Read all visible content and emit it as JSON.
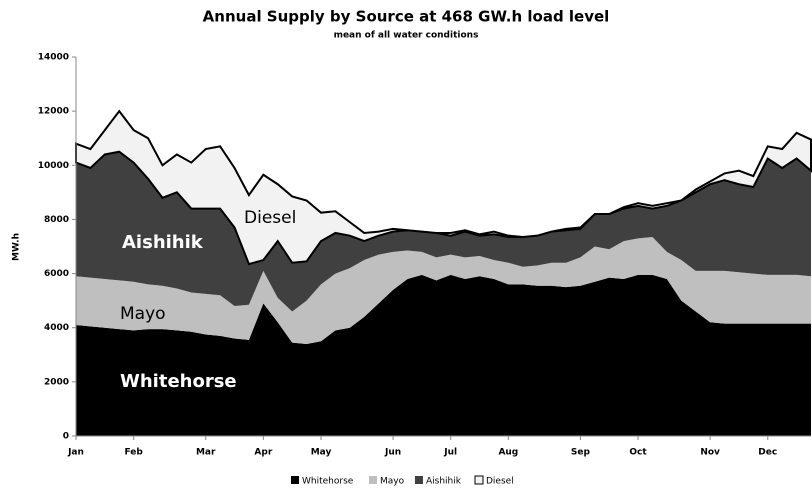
{
  "chart_data": {
    "type": "stacked_area",
    "title": "Annual Supply by Source at 468 GW.h load level",
    "subtitle": "mean of all water conditions",
    "y_label": "MW.h",
    "categories": [
      "Jan",
      null,
      null,
      null,
      "Feb",
      null,
      null,
      null,
      null,
      "Mar",
      null,
      null,
      null,
      "Apr",
      null,
      null,
      null,
      "May",
      null,
      null,
      null,
      null,
      "Jun",
      null,
      null,
      null,
      "Jul",
      null,
      null,
      null,
      "Aug",
      null,
      null,
      null,
      null,
      "Sep",
      null,
      null,
      null,
      "Oct",
      null,
      null,
      null,
      null,
      "Nov",
      null,
      null,
      null,
      "Dec",
      null,
      null,
      null
    ],
    "ylim": [
      0,
      14000
    ],
    "yticks": [
      0,
      2000,
      4000,
      6000,
      8000,
      10000,
      12000,
      14000
    ],
    "series": [
      {
        "name": "Whitehorse",
        "color": "#000000",
        "values": [
          4100,
          4050,
          4000,
          3950,
          3900,
          3950,
          3950,
          3900,
          3850,
          3750,
          3700,
          3600,
          3550,
          4900,
          4200,
          3450,
          3400,
          3500,
          3900,
          4000,
          4400,
          4900,
          5400,
          5800,
          5950,
          5750,
          5950,
          5800,
          5900,
          5800,
          5600,
          5600,
          5550,
          5550,
          5500,
          5550,
          5700,
          5850,
          5800,
          5950,
          5950,
          5800,
          5000,
          4600,
          4200,
          4150,
          4150,
          4150,
          4150,
          4150,
          4150,
          4150
        ]
      },
      {
        "name": "Mayo",
        "color": "#bfbfbf",
        "values": [
          1800,
          1800,
          1800,
          1800,
          1800,
          1650,
          1600,
          1550,
          1450,
          1500,
          1500,
          1200,
          1300,
          1200,
          900,
          1150,
          1600,
          2100,
          2100,
          2200,
          2100,
          1800,
          1400,
          1050,
          850,
          850,
          750,
          800,
          750,
          700,
          800,
          650,
          750,
          850,
          900,
          1050,
          1300,
          1050,
          1400,
          1350,
          1400,
          1000,
          1500,
          1500,
          1900,
          1950,
          1900,
          1850,
          1800,
          1800,
          1800,
          1750
        ]
      },
      {
        "name": "Aishihik",
        "color": "#404040",
        "values": [
          4200,
          4050,
          4600,
          4750,
          4400,
          3900,
          3250,
          3550,
          3100,
          3150,
          3200,
          2900,
          1500,
          400,
          2100,
          1800,
          1450,
          1600,
          1500,
          1200,
          700,
          700,
          750,
          750,
          750,
          900,
          700,
          950,
          750,
          950,
          950,
          1100,
          1100,
          1150,
          1200,
          1050,
          1200,
          1300,
          1200,
          1200,
          1050,
          1700,
          2200,
          2900,
          3200,
          3350,
          3250,
          3200,
          4300,
          3950,
          4300,
          3900
        ]
      },
      {
        "name": "Diesel",
        "color": "#f2f2f2",
        "values": [
          700,
          700,
          900,
          1500,
          1200,
          1500,
          1200,
          1400,
          1700,
          2200,
          2300,
          2200,
          2550,
          3150,
          2100,
          2450,
          2250,
          1050,
          800,
          500,
          300,
          150,
          100,
          0,
          0,
          0,
          100,
          50,
          50,
          100,
          50,
          0,
          0,
          0,
          50,
          50,
          0,
          0,
          50,
          100,
          100,
          100,
          0,
          100,
          100,
          250,
          500,
          400,
          450,
          700,
          950,
          1150
        ]
      }
    ],
    "annotations": [
      "Diesel",
      "Aishihik",
      "Mayo",
      "Whitehorse"
    ]
  }
}
